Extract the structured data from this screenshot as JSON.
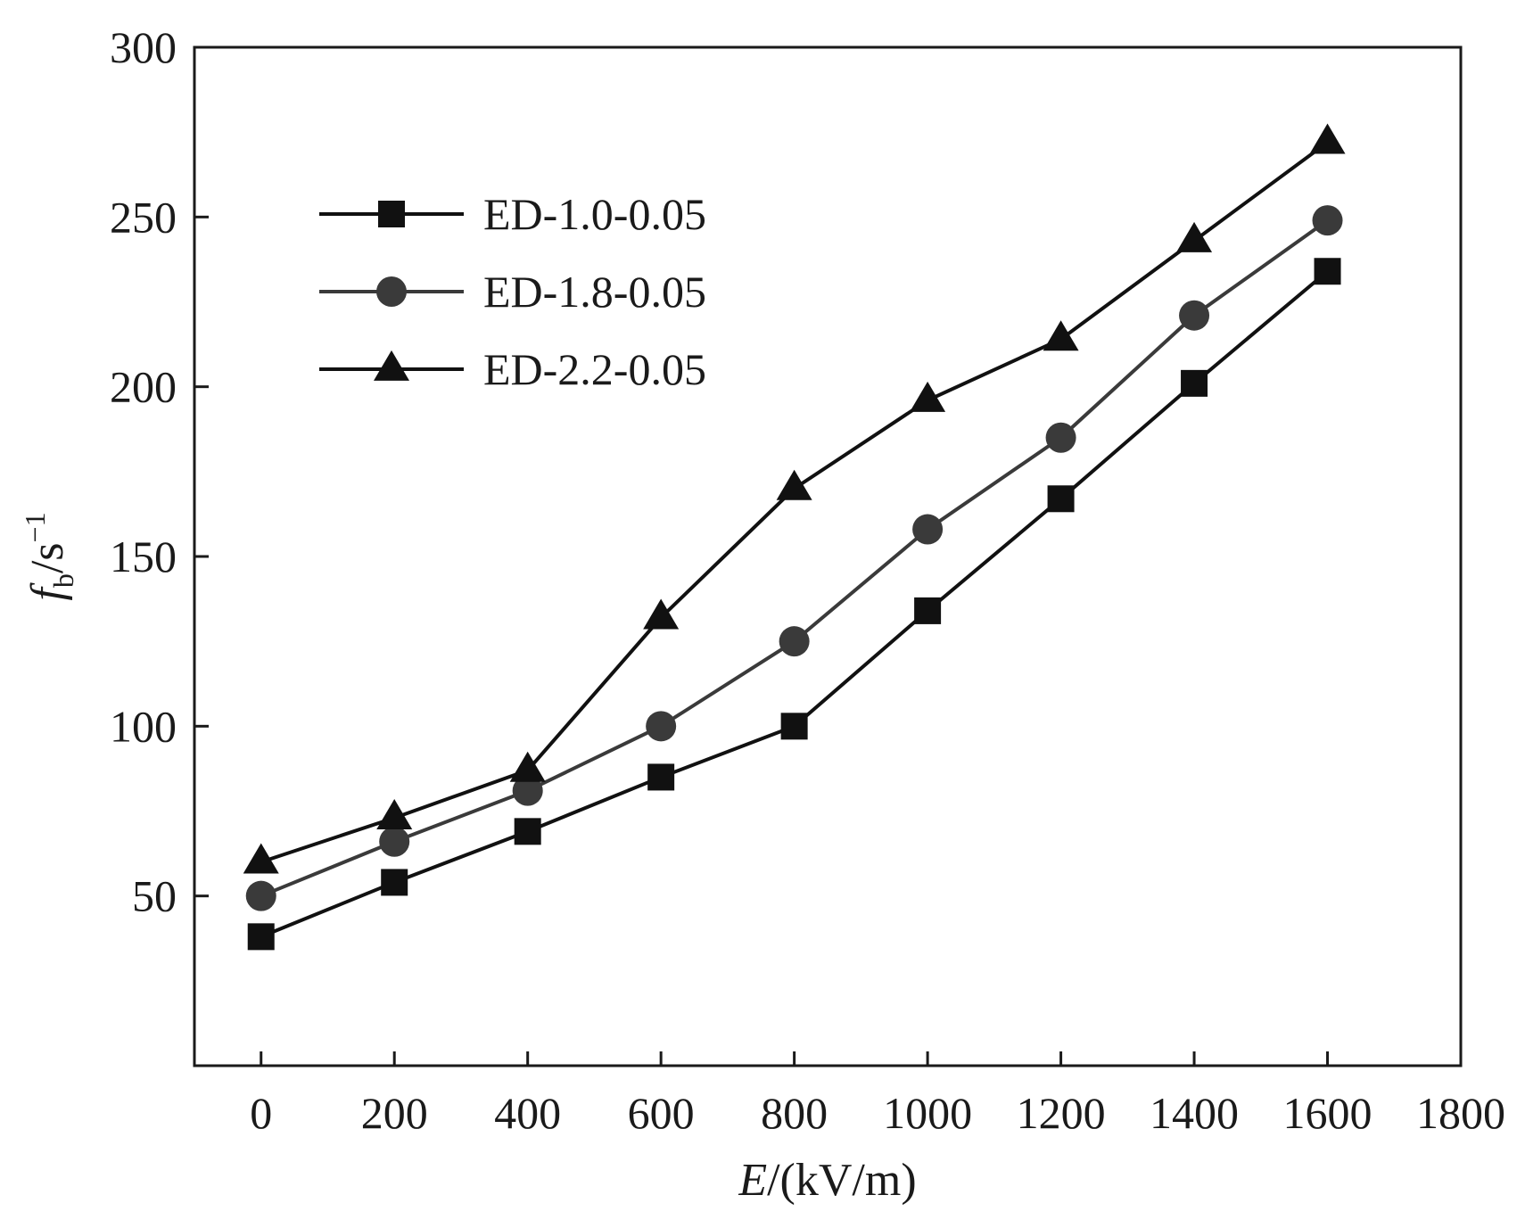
{
  "chart_data": {
    "type": "line",
    "xlabel": {
      "italic": "E",
      "rest": "/(kV/m)"
    },
    "ylabel": {
      "italic": "f",
      "sub": "b",
      "rest": "/s",
      "sup": "−1"
    },
    "xlim": [
      -100,
      1800
    ],
    "ylim": [
      0,
      300
    ],
    "x_ticks": [
      0,
      200,
      400,
      600,
      800,
      1000,
      1200,
      1400,
      1600,
      1800
    ],
    "y_ticks": [
      50,
      100,
      150,
      200,
      250,
      300
    ],
    "grid": false,
    "legend_position": "upper-left",
    "series": [
      {
        "name": "ED-1.0-0.05",
        "marker": "square",
        "color": "#111111",
        "x": [
          0,
          200,
          400,
          600,
          800,
          1000,
          1200,
          1400,
          1600
        ],
        "y": [
          38,
          54,
          69,
          85,
          100,
          134,
          167,
          201,
          234
        ]
      },
      {
        "name": "ED-1.8-0.05",
        "marker": "circle",
        "color": "#3a3a3a",
        "x": [
          0,
          200,
          400,
          600,
          800,
          1000,
          1200,
          1400,
          1600
        ],
        "y": [
          50,
          66,
          81,
          100,
          125,
          158,
          185,
          221,
          249
        ]
      },
      {
        "name": "ED-2.2-0.05",
        "marker": "triangle",
        "color": "#111111",
        "x": [
          0,
          200,
          400,
          600,
          800,
          1000,
          1200,
          1400,
          1600
        ],
        "y": [
          60,
          73,
          87,
          132,
          170,
          196,
          214,
          243,
          272
        ]
      }
    ]
  }
}
